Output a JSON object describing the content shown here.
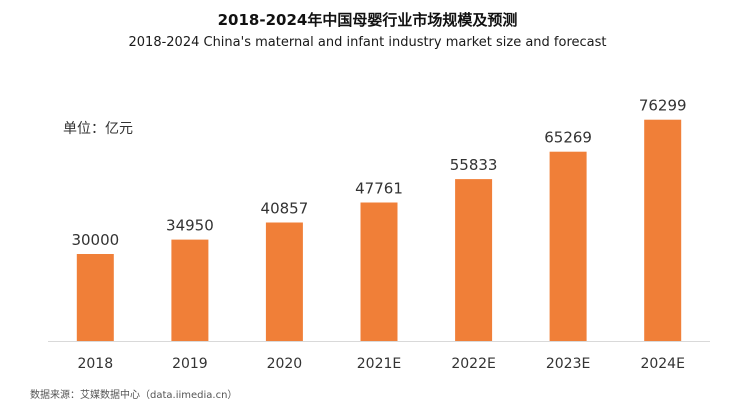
{
  "header": {
    "title": "2018-2024年中国母婴行业市场规模及预测",
    "subtitle": "2018-2024 China's maternal and infant industry market size and forecast"
  },
  "unit_label": "单位：亿元",
  "source": "数据来源：艾媒数据中心（data.iimedia.cn）",
  "colors": {
    "bar": "#F07F38",
    "axis": "#D9D9D9",
    "text": "#333333"
  },
  "chart_data": {
    "type": "bar",
    "title": "2018-2024年中国母婴行业市场规模及预测",
    "subtitle": "2018-2024 China's maternal and infant industry market size and forecast",
    "xlabel": "",
    "ylabel": "单位：亿元",
    "categories": [
      "2018",
      "2019",
      "2020",
      "2021E",
      "2022E",
      "2023E",
      "2024E"
    ],
    "values": [
      30000,
      34950,
      40857,
      47761,
      55833,
      65269,
      76299
    ],
    "data_labels": [
      "30000",
      "34950",
      "40857",
      "47761",
      "55833",
      "65269",
      "76299"
    ],
    "ylim": [
      0,
      80000
    ],
    "grid": false,
    "legend": "none"
  }
}
